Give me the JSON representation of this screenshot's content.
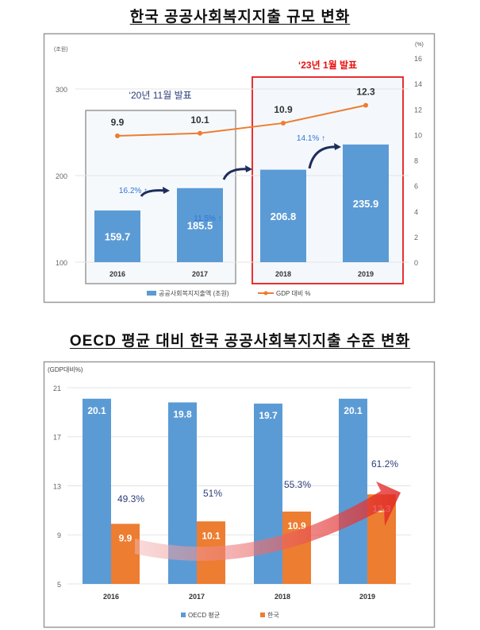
{
  "chart_data": [
    {
      "type": "bar+line",
      "title": "한국 공공사회복지지출 규모 변화",
      "left_unit": "(조원)",
      "right_unit": "(%)",
      "categories": [
        "2016",
        "2017",
        "2018",
        "2019"
      ],
      "series": [
        {
          "name": "공공사회복지지출액 (조원)",
          "type": "bar",
          "values": [
            159.7,
            185.5,
            206.8,
            235.9
          ],
          "labels": [
            "159.7",
            "185.5",
            "206.8",
            "235.9"
          ],
          "color": "#5b9bd5"
        },
        {
          "name": "GDP 대비 %",
          "type": "line",
          "axis": "right",
          "values": [
            9.9,
            10.1,
            10.9,
            12.3
          ],
          "labels": [
            "9.9",
            "10.1",
            "10.9",
            "12.3"
          ],
          "color": "#ed7d31"
        }
      ],
      "growth_annotations": [
        "16.2% ↑",
        "11.5% ↑",
        "14.1% ↑"
      ],
      "group_labels": [
        "‘20년 11월 발표",
        "‘23년 1월 발표"
      ],
      "ylim": [
        100,
        300
      ],
      "yticks": [
        "100",
        "200",
        "300"
      ],
      "y2lim": [
        0,
        16
      ],
      "y2ticks": [
        "0",
        "2",
        "4",
        "6",
        "8",
        "10",
        "12",
        "14",
        "16"
      ],
      "legend": "bottom"
    },
    {
      "type": "bar",
      "title": "OECD 평균 대비 한국 공공사회복지지출 수준 변화",
      "ylabel": "(GDP대비%)",
      "categories": [
        "2016",
        "2017",
        "2018",
        "2019"
      ],
      "series": [
        {
          "name": "OECD 평균",
          "values": [
            20.1,
            19.8,
            19.7,
            20.1
          ],
          "labels": [
            "20.1",
            "19.8",
            "19.7",
            "20.1"
          ],
          "color": "#5b9bd5"
        },
        {
          "name": "한국",
          "values": [
            9.9,
            10.1,
            10.9,
            12.3
          ],
          "labels": [
            "9.9",
            "10.1",
            "10.9",
            "12.3"
          ],
          "color": "#ed7d31"
        }
      ],
      "ratio_labels": [
        "49.3%",
        "51%",
        "55.3%",
        "61.2%"
      ],
      "ylim": [
        5,
        21
      ],
      "yticks": [
        "5",
        "9",
        "13",
        "17",
        "21"
      ],
      "legend": "bottom"
    }
  ]
}
